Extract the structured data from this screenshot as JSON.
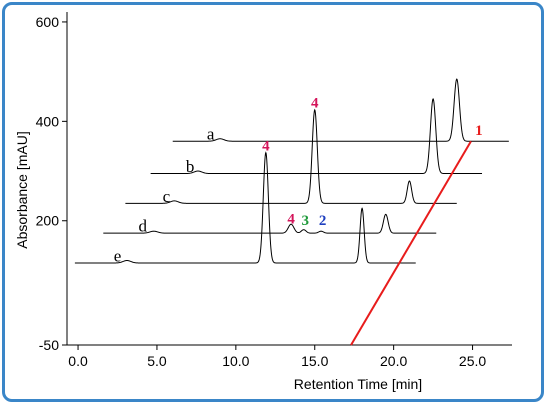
{
  "chart_data": {
    "type": "line",
    "title": "",
    "xlabel": "Retention Time [min]",
    "ylabel": "Absorbance [mAU]",
    "xlim": [
      -0.7,
      27.5
    ],
    "ylim": [
      -50,
      620
    ],
    "x_ticks": [
      0.0,
      5.0,
      10.0,
      15.0,
      20.0,
      25.0
    ],
    "x_tick_labels": [
      "0.0",
      "5.0",
      "10.0",
      "15.0",
      "20.0",
      "25.0"
    ],
    "y_ticks": [
      -50,
      200,
      400,
      600
    ],
    "y_tick_labels": [
      "-50",
      "200",
      "400",
      "600"
    ],
    "grid": false,
    "series": [
      {
        "name": "a",
        "x_start": 6.0,
        "x_end": 27.3,
        "baseline": 360,
        "peaks": [
          {
            "x": 9.0,
            "h": 5,
            "w": 0.25
          },
          {
            "x": 24.0,
            "h": 125,
            "w": 0.17
          }
        ]
      },
      {
        "name": "b",
        "x_start": 4.6,
        "x_end": 25.6,
        "baseline": 295,
        "peaks": [
          {
            "x": 7.6,
            "h": 5,
            "w": 0.25
          },
          {
            "x": 22.5,
            "h": 150,
            "w": 0.17
          }
        ]
      },
      {
        "name": "c",
        "x_start": 3.0,
        "x_end": 24.0,
        "baseline": 235,
        "peaks": [
          {
            "x": 6.1,
            "h": 5,
            "w": 0.25
          },
          {
            "x": 15.0,
            "h": 188,
            "w": 0.16
          },
          {
            "x": 21.0,
            "h": 45,
            "w": 0.14
          }
        ]
      },
      {
        "name": "d",
        "x_start": 1.6,
        "x_end": 22.7,
        "baseline": 175,
        "peaks": [
          {
            "x": 4.8,
            "h": 4,
            "w": 0.25
          },
          {
            "x": 13.5,
            "h": 18,
            "w": 0.18
          },
          {
            "x": 14.3,
            "h": 7,
            "w": 0.15
          },
          {
            "x": 15.4,
            "h": 4,
            "w": 0.15
          },
          {
            "x": 19.5,
            "h": 38,
            "w": 0.15
          }
        ]
      },
      {
        "name": "e",
        "x_start": -0.2,
        "x_end": 21.4,
        "baseline": 115,
        "peaks": [
          {
            "x": 3.1,
            "h": 5,
            "w": 0.25
          },
          {
            "x": 11.9,
            "h": 222,
            "w": 0.16
          },
          {
            "x": 18.0,
            "h": 110,
            "w": 0.13
          }
        ]
      }
    ],
    "trend_line": {
      "name": "1",
      "color": "#e81c1c",
      "x": [
        17.3,
        24.9
      ],
      "y": [
        -50,
        360
      ]
    },
    "peak_annotations": [
      {
        "text": "1",
        "x": 25.4,
        "y": 373,
        "color": "#e81c1c"
      },
      {
        "text": "4",
        "x": 15.0,
        "y": 428,
        "color": "#d4145a"
      },
      {
        "text": "4",
        "x": 11.9,
        "y": 341,
        "color": "#d4145a"
      },
      {
        "text": "4",
        "x": 13.5,
        "y": 194,
        "color": "#d4145a"
      },
      {
        "text": "3",
        "x": 14.4,
        "y": 191,
        "color": "#1f9a3a"
      },
      {
        "text": "2",
        "x": 15.5,
        "y": 191,
        "color": "#1f3fbf"
      }
    ],
    "trace_labels": [
      {
        "text": "a",
        "x": 8.4,
        "y": 363
      },
      {
        "text": "b",
        "x": 7.1,
        "y": 298
      },
      {
        "text": "c",
        "x": 5.6,
        "y": 238
      },
      {
        "text": "d",
        "x": 4.1,
        "y": 178
      },
      {
        "text": "e",
        "x": 2.5,
        "y": 118
      }
    ]
  }
}
